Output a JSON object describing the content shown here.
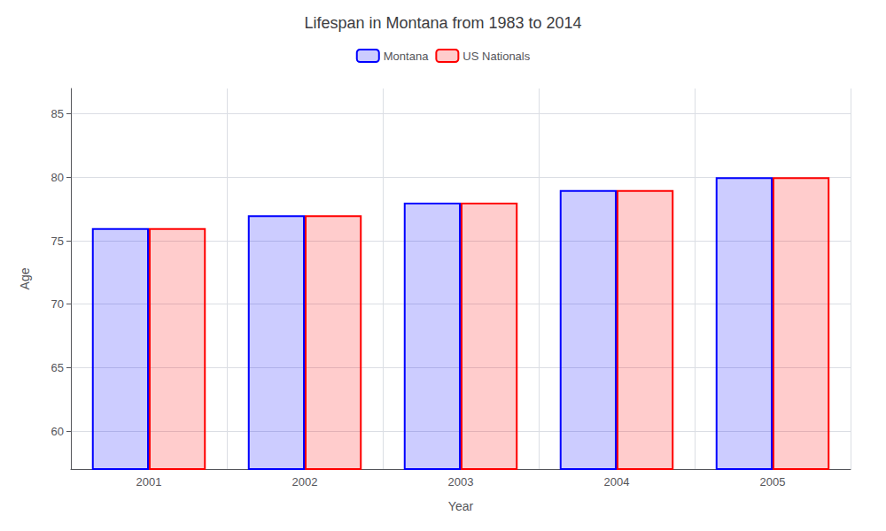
{
  "chart_data": {
    "type": "bar",
    "title": "Lifespan in Montana from 1983 to 2014",
    "xlabel": "Year",
    "ylabel": "Age",
    "categories": [
      "2001",
      "2002",
      "2003",
      "2004",
      "2005"
    ],
    "series": [
      {
        "name": "Montana",
        "color": "#0000ff",
        "values": [
          76,
          77,
          78,
          79,
          80
        ]
      },
      {
        "name": "US Nationals",
        "color": "#ff0000",
        "values": [
          76,
          77,
          78,
          79,
          80
        ]
      }
    ],
    "ylim": [
      57,
      87
    ],
    "yticks": [
      60,
      65,
      70,
      75,
      80,
      85
    ],
    "grid": true,
    "legend": "top"
  }
}
